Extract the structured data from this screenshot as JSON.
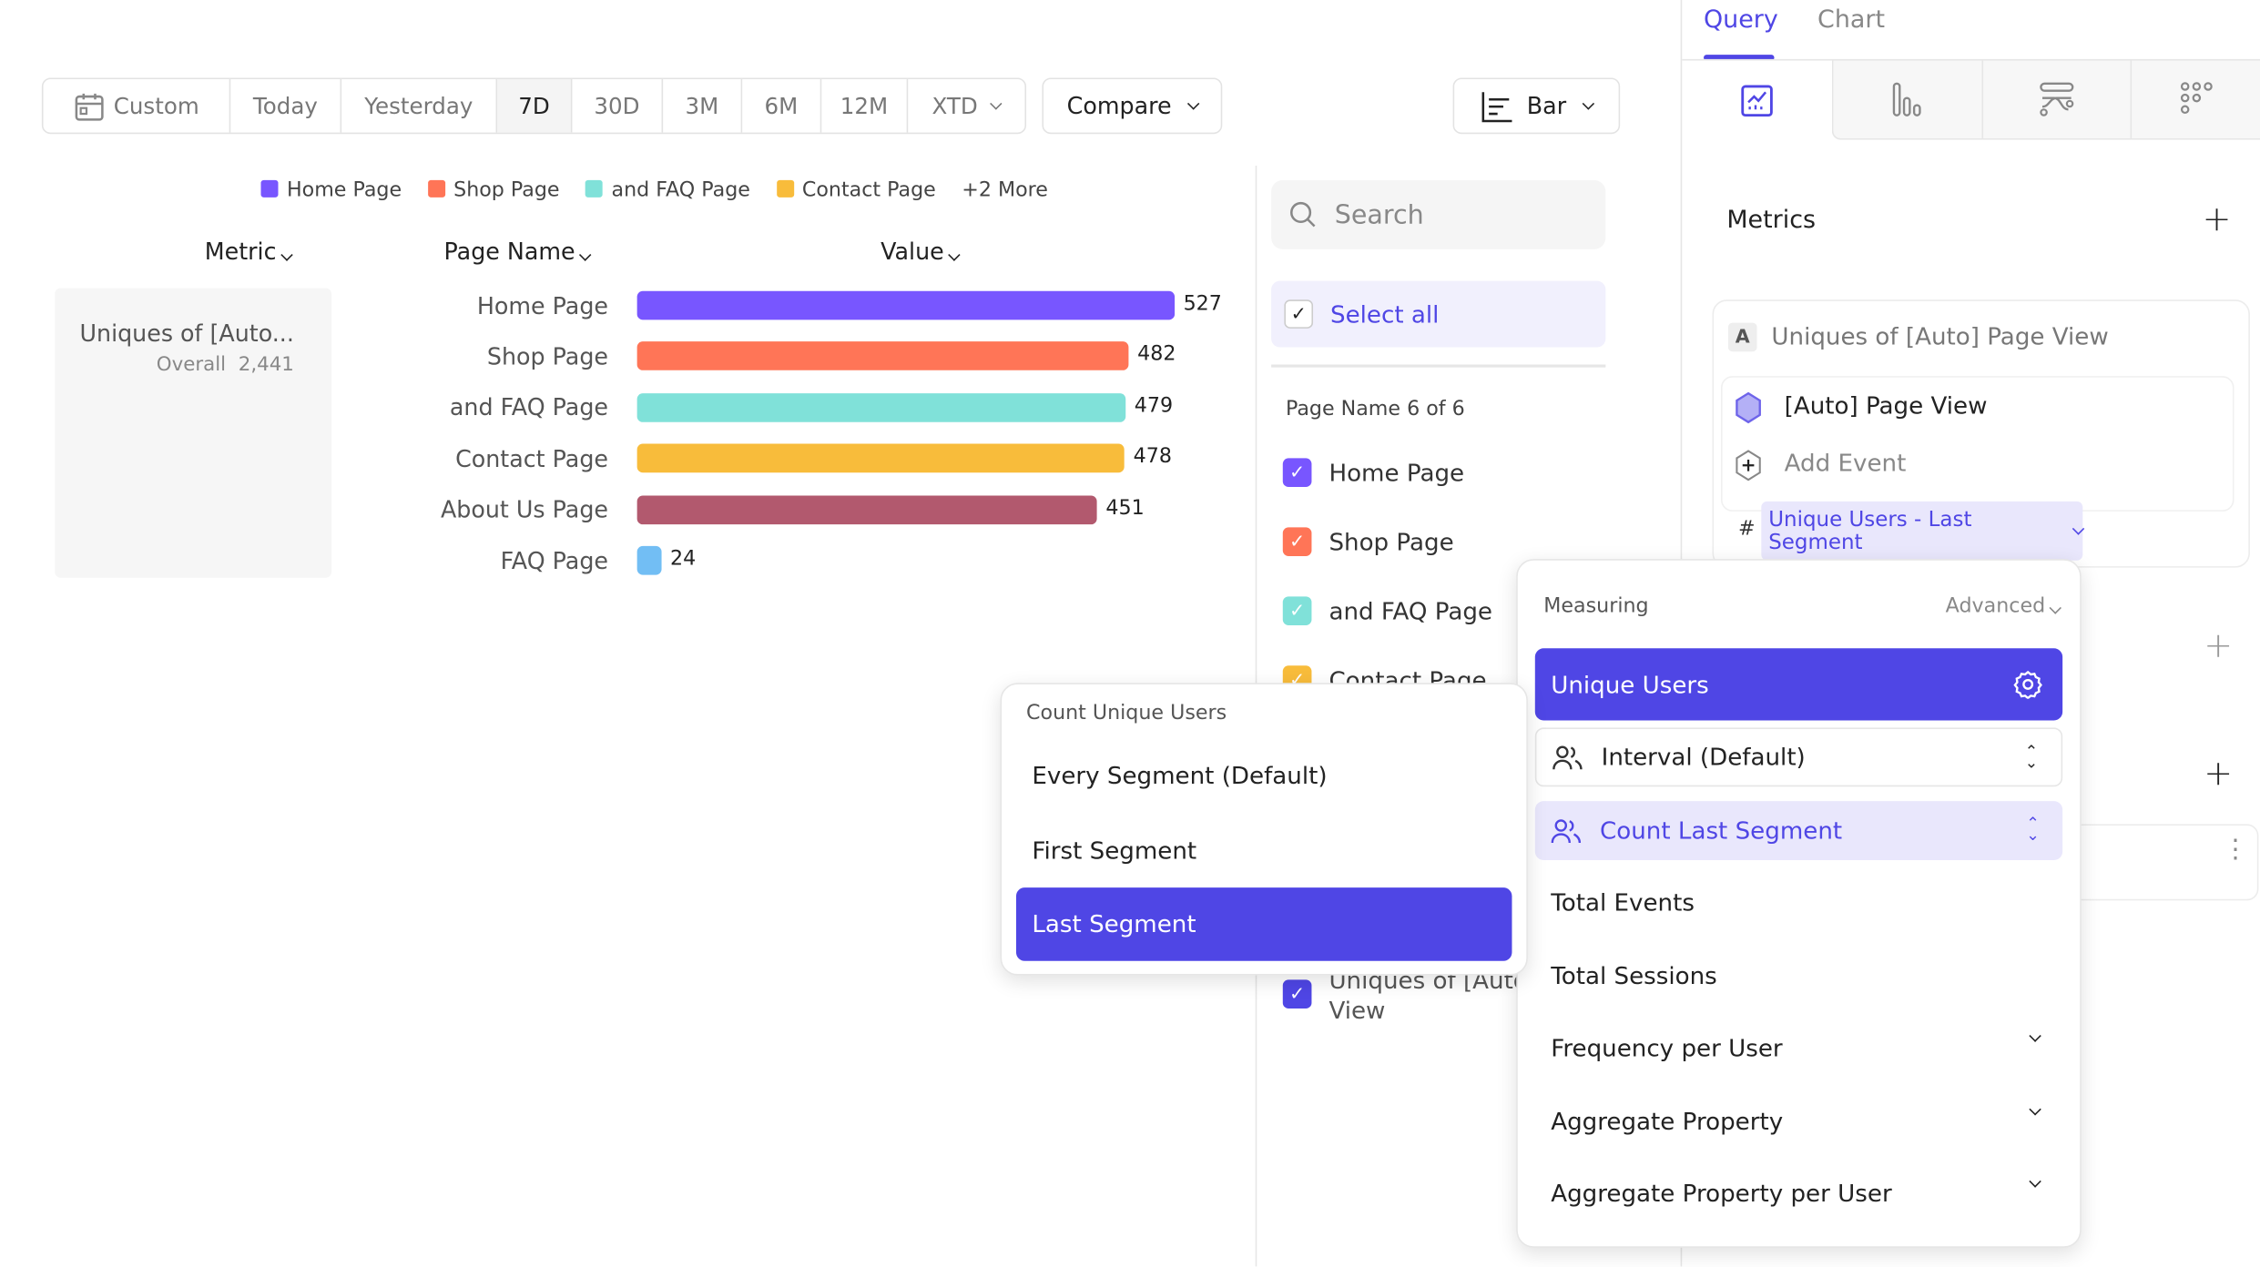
{
  "toolbar": {
    "ranges": [
      "Custom",
      "Today",
      "Yesterday",
      "7D",
      "30D",
      "3M",
      "6M",
      "12M",
      "XTD"
    ],
    "selected_range": "7D",
    "compare_label": "Compare",
    "chart_type_label": "Bar"
  },
  "legend": {
    "items": [
      {
        "label": "Home Page",
        "color": "#7856ff"
      },
      {
        "label": "Shop Page",
        "color": "#ff7557"
      },
      {
        "label": "and FAQ Page",
        "color": "#80e1d9"
      },
      {
        "label": "Contact Page",
        "color": "#f8bc3b"
      }
    ],
    "more": "+2 More"
  },
  "table": {
    "headers": {
      "metric": "Metric",
      "page_name": "Page Name",
      "value": "Value"
    },
    "metric_name": "Uniques of [Auto...",
    "overall_label": "Overall",
    "overall_value": "2,441"
  },
  "chart_data": {
    "type": "bar",
    "orientation": "horizontal",
    "categories": [
      "Home Page",
      "Shop Page",
      "and FAQ Page",
      "Contact Page",
      "About Us Page",
      "FAQ Page"
    ],
    "values": [
      527,
      482,
      479,
      478,
      451,
      24
    ],
    "colors": [
      "#7856ff",
      "#ff7557",
      "#80e1d9",
      "#f8bc3b",
      "#b2596e",
      "#72bef4"
    ]
  },
  "filter": {
    "search_placeholder": "Search",
    "select_all": "Select all",
    "count_label": "Page Name 6 of 6",
    "items": [
      {
        "label": "Home Page",
        "color": "#7856ff"
      },
      {
        "label": "Shop Page",
        "color": "#ff7557"
      },
      {
        "label": "and FAQ Page",
        "color": "#80e1d9"
      },
      {
        "label": "Contact Page",
        "color": "#f8bc3b"
      }
    ],
    "metric_item_line1": "Uniques of [Auto]",
    "metric_item_line2": "View"
  },
  "right_panel": {
    "tabs": [
      "Query",
      "Chart"
    ],
    "active_tab": "Query",
    "metrics_title": "Metrics",
    "metric_badge": "A",
    "metric_title": "Uniques of [Auto] Page View",
    "event_name": "[Auto] Page View",
    "add_event": "Add Event",
    "measure_hash": "#",
    "measure_pill": "Unique Users - Last Segment"
  },
  "measuring_popover": {
    "title": "Measuring",
    "advanced": "Advanced",
    "selected": "Unique Users",
    "interval": "Interval (Default)",
    "count_mode": "Count Last Segment",
    "items": [
      "Total Events",
      "Total Sessions",
      "Frequency per User",
      "Aggregate Property",
      "Aggregate Property per User"
    ]
  },
  "count_popover": {
    "title": "Count Unique Users",
    "options": [
      "Every Segment (Default)",
      "First Segment",
      "Last Segment"
    ],
    "selected": "Last Segment"
  },
  "colors": {
    "accent": "#4f46e5",
    "accent_light": "#ebe9fd"
  }
}
